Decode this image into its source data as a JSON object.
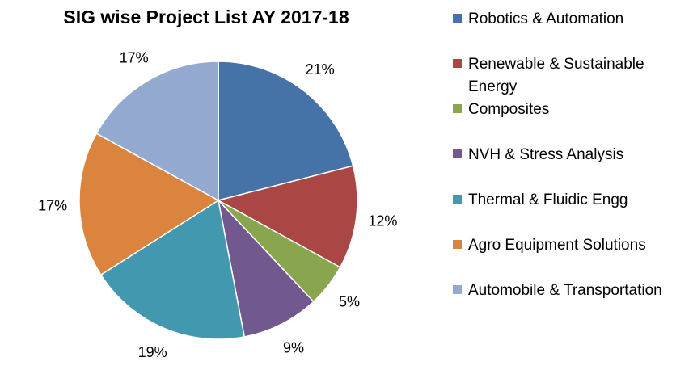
{
  "chart_data": {
    "type": "pie",
    "title": "SIG wise Project List AY 2017-18",
    "categories": [
      "Robotics & Automation",
      "Renewable & Sustainable Energy",
      "Composites",
      "NVH & Stress Analysis",
      "Thermal & Fluidic Engg",
      "Agro Equipment Solutions",
      "Automobile & Transportation"
    ],
    "values": [
      21,
      12,
      5,
      9,
      19,
      17,
      17
    ],
    "value_labels": [
      "21%",
      "12%",
      "5%",
      "9%",
      "19%",
      "17%",
      "17%"
    ],
    "colors": [
      "#4572A7",
      "#AA4643",
      "#89A54E",
      "#71588F",
      "#4198AF",
      "#DB843D",
      "#93A9CF"
    ],
    "legend_position": "right",
    "start_angle": "12 o'clock",
    "direction": "clockwise"
  }
}
